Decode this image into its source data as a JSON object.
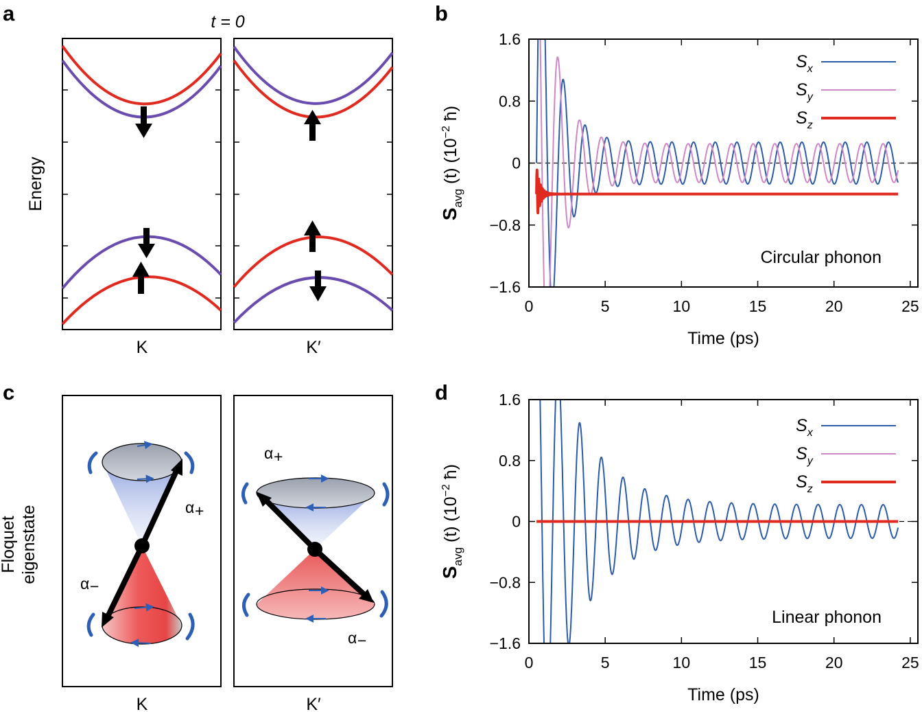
{
  "figure": {
    "panel_a": {
      "letter": "a",
      "title": "t = 0",
      "ylabel": "Energy",
      "valleys": [
        "K",
        "K′"
      ]
    },
    "panel_c": {
      "letter": "c",
      "ylabel_line1": "Floquet",
      "ylabel_line2": "eigenstate",
      "valleys": [
        "K",
        "K′"
      ],
      "alpha_plus": "α",
      "alpha_plus_sub": "+",
      "alpha_minus": "α",
      "alpha_minus_sub": "−"
    }
  },
  "colors": {
    "sx": "#2b5aa8",
    "sy": "#cf86c6",
    "sz": "#e02a20",
    "band_red": "#e02a20",
    "band_purple": "#6a4cae"
  },
  "chart_data": [
    {
      "panel": "b",
      "letter": "b",
      "type": "line",
      "title": "",
      "annotation": "Circular phonon",
      "xlabel": "Time (ps)",
      "ylabel_main": "S",
      "ylabel_sub": "avg",
      "ylabel_rest": "(t) (10",
      "ylabel_exp": "−2",
      "ylabel_unit": "ħ)",
      "xlim": [
        0,
        25.5
      ],
      "ylim": [
        -1.6,
        1.6
      ],
      "xticks": [
        0,
        5,
        10,
        15,
        20,
        25
      ],
      "xtick_labels": [
        "0",
        "5",
        "10",
        "15",
        "20",
        "25"
      ],
      "yticks": [
        -1.6,
        -0.8,
        0,
        0.8,
        1.6
      ],
      "ytick_labels": [
        "−1.6",
        "−0.8",
        "0",
        "0.8",
        "1.6"
      ],
      "legend": [
        {
          "label": "S",
          "sub": "x"
        },
        {
          "label": "S",
          "sub": "y"
        },
        {
          "label": "S",
          "sub": "z"
        }
      ],
      "series": [
        {
          "name": "Sx",
          "start": 0.5,
          "end": 24.2,
          "amplitude": 4.0,
          "decay_ps": 1.1,
          "floor_amplitude": 0.27,
          "period_ps": 1.42,
          "phase": 0.0,
          "offset": 0.0
        },
        {
          "name": "Sy",
          "start": 0.5,
          "end": 24.2,
          "amplitude": 4.0,
          "decay_ps": 1.1,
          "floor_amplitude": 0.25,
          "period_ps": 1.42,
          "phase": 1.5708,
          "offset": 0.0
        },
        {
          "name": "Sz",
          "start": 0.5,
          "end": 24.2,
          "amplitude": 0.35,
          "decay_ps": 0.25,
          "floor_amplitude": 0.0,
          "period_ps": 0.12,
          "phase": 0.0,
          "offset": -0.4
        }
      ]
    },
    {
      "panel": "d",
      "letter": "d",
      "type": "line",
      "title": "",
      "annotation": "Linear phonon",
      "xlabel": "Time (ps)",
      "ylabel_main": "S",
      "ylabel_sub": "avg",
      "ylabel_rest": "(t) (10",
      "ylabel_exp": "−2",
      "ylabel_unit": "ħ)",
      "xlim": [
        0,
        25.5
      ],
      "ylim": [
        -1.6,
        1.6
      ],
      "xticks": [
        0,
        5,
        10,
        15,
        20,
        25
      ],
      "xtick_labels": [
        "0",
        "5",
        "10",
        "15",
        "20",
        "25"
      ],
      "yticks": [
        -1.6,
        -0.8,
        0,
        0.8,
        1.6
      ],
      "ytick_labels": [
        "−1.6",
        "−0.8",
        "0",
        "0.8",
        "1.6"
      ],
      "legend": [
        {
          "label": "S",
          "sub": "x"
        },
        {
          "label": "S",
          "sub": "y"
        },
        {
          "label": "S",
          "sub": "z"
        }
      ],
      "series": [
        {
          "name": "Sx",
          "start": 0.5,
          "end": 24.2,
          "amplitude": 3.2,
          "decay_ps": 2.6,
          "floor_amplitude": 0.22,
          "period_ps": 1.42,
          "phase": 1.5708,
          "offset": 0.0
        },
        {
          "name": "Sy",
          "start": 0.5,
          "end": 24.2,
          "amplitude": 0.0,
          "decay_ps": 1.0,
          "floor_amplitude": 0.0,
          "period_ps": 1.42,
          "phase": 0.0,
          "offset": 0.0
        },
        {
          "name": "Sz",
          "start": 0.5,
          "end": 24.2,
          "amplitude": 0.0,
          "decay_ps": 1.0,
          "floor_amplitude": 0.0,
          "period_ps": 1.42,
          "phase": 0.0,
          "offset": 0.0
        }
      ]
    }
  ]
}
